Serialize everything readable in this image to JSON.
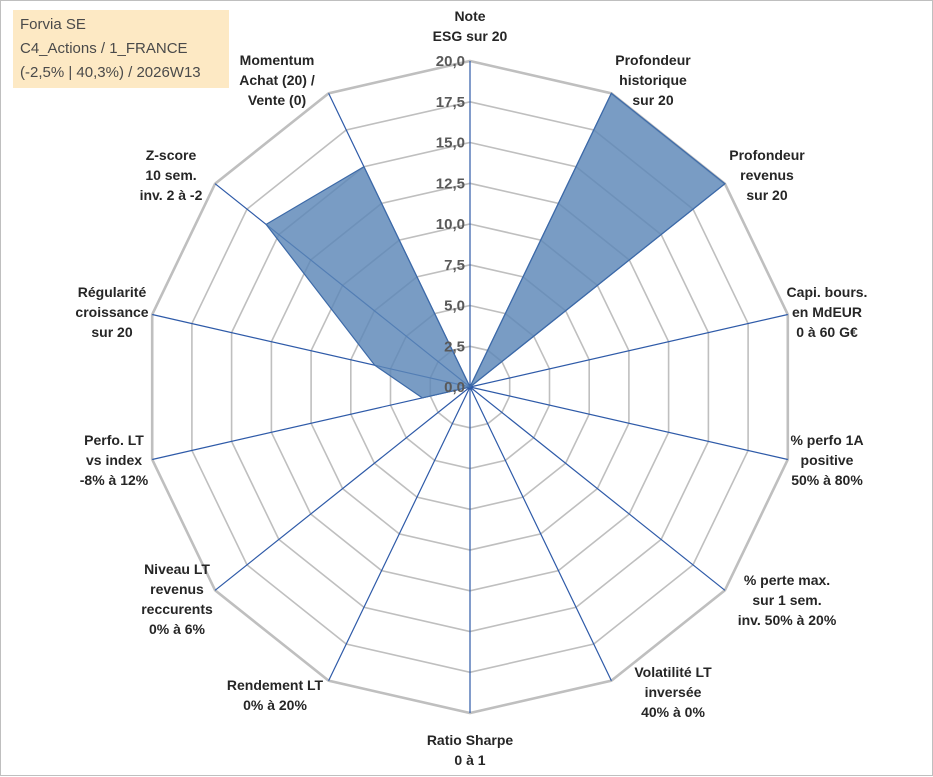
{
  "info": {
    "line1": "Forvia SE",
    "line2": "C4_Actions / 1_FRANCE",
    "line3": "(-2,5% | 40,3%) / 2026W13"
  },
  "colors": {
    "grid": "#bfbfbf",
    "spoke": "#2e5aa8",
    "fill": "#5b86b7",
    "stroke": "#3d6aa8",
    "info_bg": "#fde9c4"
  },
  "chart_data": {
    "type": "radar",
    "title": "",
    "rmin": 0,
    "rmax": 20,
    "ticks": [
      "0,0",
      "2,5",
      "5,0",
      "7,5",
      "10,0",
      "12,5",
      "15,0",
      "17,5",
      "20,0"
    ],
    "axes": [
      {
        "lines": [
          "Note",
          "ESG sur 20"
        ]
      },
      {
        "lines": [
          "Profondeur",
          "historique",
          "sur 20"
        ]
      },
      {
        "lines": [
          "Profondeur",
          "revenus",
          "sur 20"
        ]
      },
      {
        "lines": [
          "Capi. bours.",
          "en MdEUR",
          "0 à 60 G€"
        ]
      },
      {
        "lines": [
          "% perfo 1A",
          "positive",
          "50% à 80%"
        ]
      },
      {
        "lines": [
          "% perte max.",
          "sur 1 sem.",
          "inv. 50% à 20%"
        ]
      },
      {
        "lines": [
          "Volatilité LT",
          "inversée",
          "40% à 0%"
        ]
      },
      {
        "lines": [
          "Ratio Sharpe",
          "0 à 1"
        ]
      },
      {
        "lines": [
          "Rendement LT",
          "0% à 20%"
        ]
      },
      {
        "lines": [
          "Niveau LT",
          "revenus",
          "reccurents",
          "0% à 6%"
        ]
      },
      {
        "lines": [
          "Perfo. LT",
          "vs index",
          "-8% à 12%"
        ]
      },
      {
        "lines": [
          "Régularité",
          "croissance",
          "sur 20"
        ]
      },
      {
        "lines": [
          "Z-score",
          "10 sem.",
          "inv. 2 à -2"
        ]
      },
      {
        "lines": [
          "Momentum",
          "Achat (20) /",
          "Vente (0)"
        ]
      }
    ],
    "series": [
      {
        "name": "Forvia SE",
        "values": [
          0,
          20,
          20,
          0,
          0,
          0,
          0,
          0,
          0,
          0,
          3,
          6,
          16,
          15
        ]
      }
    ]
  }
}
